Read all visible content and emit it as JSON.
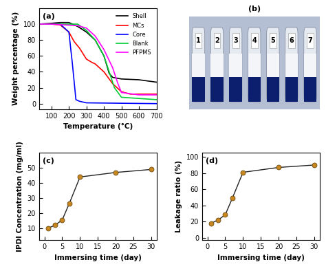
{
  "chart_data": [
    {
      "type": "line",
      "annotations": [
        "(a)"
      ],
      "x_label": "Temperature (°C)",
      "y_label": "Weight percentage (%)",
      "xlim": [
        30,
        700
      ],
      "xticks": [
        100,
        200,
        300,
        400,
        500,
        600,
        700
      ],
      "ylim": [
        -7,
        120
      ],
      "yticks": [
        0,
        20,
        40,
        60,
        80,
        100
      ],
      "legend": "upper right",
      "series": [
        {
          "name": "Shell",
          "color": "#000000",
          "x": [
            30,
            100,
            150,
            200,
            250,
            300,
            350,
            400,
            430,
            450,
            500,
            600,
            700
          ],
          "values": [
            100,
            101,
            102,
            102,
            97,
            90,
            80,
            60,
            38,
            33,
            31,
            30,
            27
          ]
        },
        {
          "name": "MCs",
          "color": "#ff0000",
          "x": [
            30,
            100,
            150,
            200,
            230,
            260,
            300,
            330,
            350,
            400,
            450,
            500,
            550,
            700
          ],
          "values": [
            100,
            100,
            99,
            90,
            78,
            70,
            56,
            52,
            50,
            40,
            25,
            15,
            12,
            12
          ]
        },
        {
          "name": "Core",
          "color": "#0000ff",
          "x": [
            30,
            100,
            150,
            200,
            220,
            240,
            260,
            300,
            700
          ],
          "values": [
            100,
            100,
            100,
            90,
            50,
            5,
            3,
            1,
            0
          ]
        },
        {
          "name": "Blank",
          "color": "#00cc33",
          "x": [
            30,
            100,
            250,
            300,
            350,
            400,
            430,
            460,
            500,
            700
          ],
          "values": [
            100,
            100,
            100,
            92,
            80,
            60,
            40,
            20,
            8,
            5
          ]
        },
        {
          "name": "PFPMS",
          "color": "#ff00ff",
          "x": [
            30,
            100,
            250,
            300,
            350,
            400,
            450,
            480,
            500,
            600,
            700
          ],
          "values": [
            100,
            100,
            98,
            95,
            85,
            68,
            45,
            25,
            14,
            11,
            11
          ]
        }
      ]
    },
    {
      "type": "line",
      "annotations": [
        "(c)"
      ],
      "x_label": "Immersing time (day)",
      "y_label": "IPDI Concentration (mg/ml)",
      "x": [
        1,
        3,
        5,
        7,
        10,
        20,
        30
      ],
      "values": [
        10,
        12,
        15.5,
        26.5,
        44,
        47,
        49
      ],
      "xlim": [
        -1.5,
        31.5
      ],
      "xticks": [
        0,
        5,
        10,
        15,
        20,
        25,
        30
      ],
      "ylim": [
        2,
        60
      ],
      "yticks": [
        10,
        20,
        30,
        40,
        50
      ],
      "color": "#c8861e",
      "marker": "circle"
    },
    {
      "type": "line",
      "annotations": [
        "(d)"
      ],
      "x_label": "Immersing time (day)",
      "y_label": "Leakage ratio (%)",
      "x": [
        1,
        3,
        5,
        7,
        10,
        20,
        30
      ],
      "values": [
        18,
        22,
        28.5,
        49,
        81,
        87,
        90
      ],
      "xlim": [
        -1.5,
        31.5
      ],
      "xticks": [
        0,
        5,
        10,
        15,
        20,
        25,
        30
      ],
      "ylim": [
        -3,
        105
      ],
      "yticks": [
        0,
        20,
        40,
        60,
        80,
        100
      ],
      "color": "#c8861e",
      "marker": "circle"
    }
  ],
  "photo": {
    "annotations": [
      "(b)"
    ],
    "vial_labels": [
      "1",
      "2",
      "3",
      "4",
      "5",
      "6",
      "7"
    ]
  }
}
